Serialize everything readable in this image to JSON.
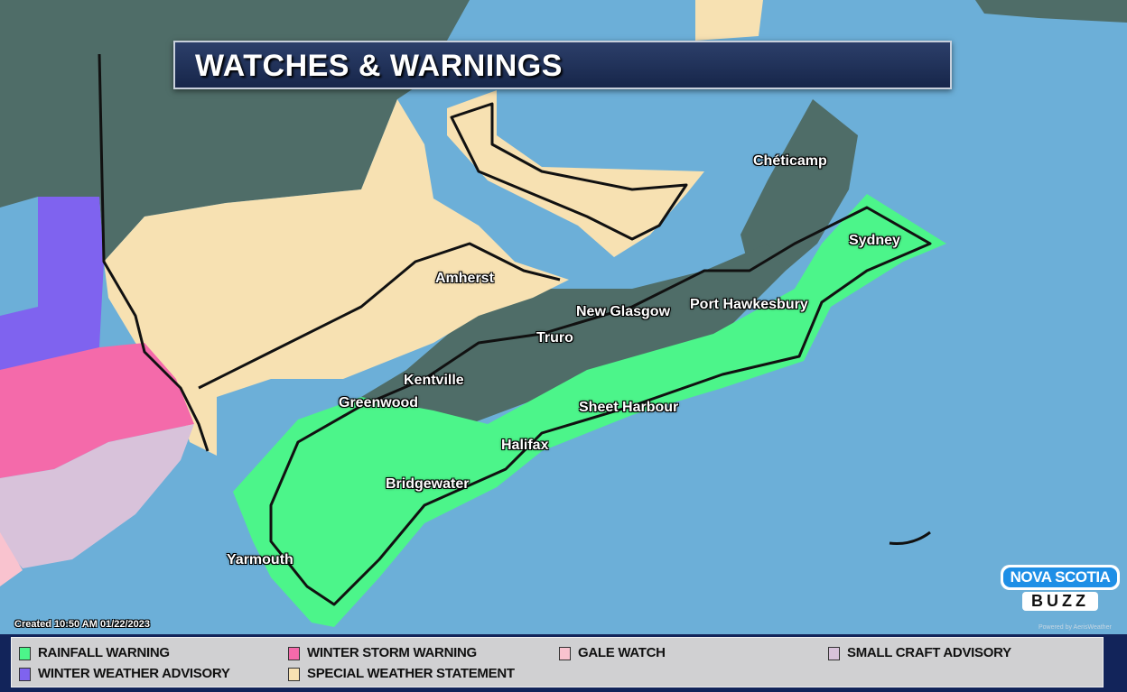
{
  "title": "WATCHES & WARNINGS",
  "cities": [
    {
      "name": "Chéticamp"
    },
    {
      "name": "Sydney"
    },
    {
      "name": "Amherst"
    },
    {
      "name": "New Glasgow"
    },
    {
      "name": "Port Hawkesbury"
    },
    {
      "name": "Truro"
    },
    {
      "name": "Kentville"
    },
    {
      "name": "Greenwood"
    },
    {
      "name": "Sheet Harbour"
    },
    {
      "name": "Halifax"
    },
    {
      "name": "Bridgewater"
    },
    {
      "name": "Yarmouth"
    }
  ],
  "created": "Created 10:50 AM 01/22/2023",
  "powered_by": "Powered by AerisWeather",
  "logo": {
    "line1": "NOVA SCOTIA",
    "line2": "BUZZ"
  },
  "legend": [
    {
      "label": "RAINFALL WARNING",
      "color": "#4cf58a"
    },
    {
      "label": "WINTER STORM WARNING",
      "color": "#f46aaa"
    },
    {
      "label": "GALE WATCH",
      "color": "#f9c3cf"
    },
    {
      "label": "SMALL CRAFT ADVISORY",
      "color": "#d8c2da"
    },
    {
      "label": "WINTER WEATHER ADVISORY",
      "color": "#7f63ef"
    },
    {
      "label": "SPECIAL WEATHER STATEMENT",
      "color": "#f7e1b2"
    }
  ],
  "colors": {
    "ocean": "#6cafd8",
    "land": "#4f6d68",
    "legend_bar": "#12245a"
  }
}
